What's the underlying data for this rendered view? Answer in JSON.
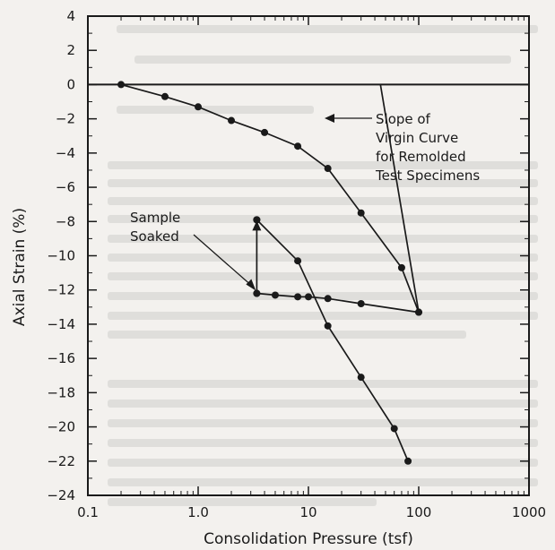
{
  "chart_data": {
    "type": "line",
    "xscale": "log",
    "xlim": [
      0.1,
      1000
    ],
    "ylim": [
      -24,
      4
    ],
    "xlabel": "Consolidation Pressure (tsf)",
    "ylabel": "Axial Strain (%)",
    "xticks": [
      {
        "value": 0.1,
        "label": "0.1"
      },
      {
        "value": 1,
        "label": "1.0"
      },
      {
        "value": 10,
        "label": "10"
      },
      {
        "value": 100,
        "label": "100"
      },
      {
        "value": 1000,
        "label": "1000"
      }
    ],
    "yticks": [
      4,
      2,
      0,
      -2,
      -4,
      -6,
      -8,
      -10,
      -12,
      -14,
      -16,
      -18,
      -20,
      -22,
      -24
    ],
    "series": [
      {
        "name": "",
        "x": [
          0.2,
          0.5,
          1.0,
          2.0,
          4.0,
          8.0,
          15,
          30,
          70,
          100
        ],
        "y": [
          0.0,
          -0.7,
          -1.3,
          -2.1,
          -2.8,
          -3.6,
          -4.9,
          -7.5,
          -10.7,
          -13.3
        ],
        "markers": true
      },
      {
        "name": "",
        "x": [
          100,
          30,
          15,
          10,
          8,
          5,
          3.4
        ],
        "y": [
          -13.3,
          -12.8,
          -12.5,
          -12.4,
          -12.4,
          -12.3,
          -12.2
        ],
        "markers": true
      },
      {
        "name": "",
        "x": [
          3.4,
          3.4
        ],
        "y": [
          -12.2,
          -7.9
        ],
        "markers": true
      },
      {
        "name": "",
        "x": [
          3.4,
          8.0,
          15,
          30,
          60,
          80
        ],
        "y": [
          -7.9,
          -10.3,
          -14.1,
          -17.1,
          -20.1,
          -22.0
        ],
        "markers": true
      }
    ],
    "reference_lines": [
      {
        "name": "virgin-slope-line",
        "points": [
          [
            45,
            0
          ],
          [
            100,
            -13.3
          ]
        ],
        "markers": false
      }
    ],
    "annotations": [
      {
        "lines": [
          "Slope of",
          "Virgin Curve",
          "for Remolded",
          "Test Specimens"
        ]
      },
      {
        "lines": [
          "Sample",
          "Soaked"
        ]
      }
    ],
    "grid": false,
    "zero_line": true
  }
}
